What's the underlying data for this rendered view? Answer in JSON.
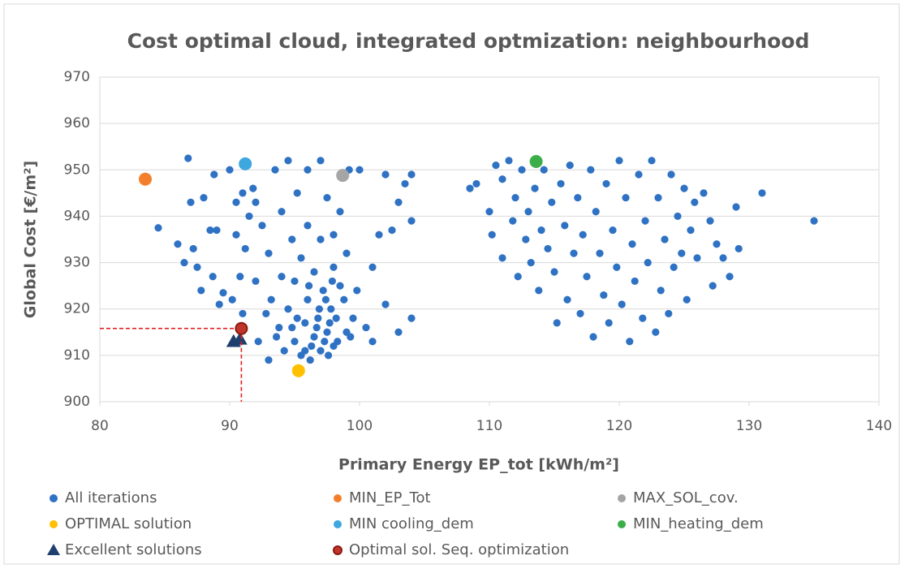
{
  "chart_data": {
    "type": "scatter",
    "title": "Cost optimal cloud, integrated optmization: neighbourhood",
    "xlabel": "Primary Energy EP_tot [kWh/m²]",
    "ylabel": "Global Cost [€/m²]",
    "xlim": [
      80,
      140
    ],
    "xticks": [
      80,
      90,
      100,
      110,
      120,
      130,
      140
    ],
    "ylim": [
      900,
      970
    ],
    "yticks": [
      900,
      910,
      920,
      930,
      940,
      950,
      960,
      970
    ],
    "grid": "y",
    "legend": "bottom",
    "series": [
      {
        "name": "All iterations",
        "color": "#2f72c4",
        "marker": "circle",
        "size": 4.6,
        "x": [
          84.5,
          86,
          86.5,
          86.8,
          87,
          87.2,
          87.5,
          87.8,
          88,
          88.5,
          88.7,
          88.8,
          89,
          89.2,
          89.5,
          90,
          90.2,
          90.5,
          90.5,
          90.8,
          91,
          91,
          91.2,
          91.5,
          91.8,
          92,
          92,
          92.2,
          92.5,
          92.8,
          93,
          93,
          93.2,
          93.5,
          93.8,
          94,
          94,
          94.2,
          94.5,
          94.5,
          94.8,
          95,
          95,
          95.2,
          95.5,
          95.5,
          95.8,
          96,
          96,
          96,
          96.2,
          96.5,
          96.5,
          96.8,
          97,
          97,
          97,
          97.2,
          97.5,
          97.5,
          97.8,
          98,
          98,
          98,
          98.2,
          98.5,
          98.5,
          98.8,
          99,
          99,
          99.2,
          99.5,
          99.8,
          100,
          100.5,
          101,
          101,
          101.5,
          102,
          102,
          102.5,
          103,
          103,
          103.5,
          104,
          104,
          104,
          96.3,
          96.7,
          97.3,
          97.7,
          95.8,
          96.9,
          97.4,
          98.3,
          94.8,
          93.6,
          99.3,
          97.9,
          95.2,
          96.1,
          97.6,
          108.5,
          109,
          110,
          110.2,
          110.5,
          111,
          111,
          111.5,
          111.8,
          112,
          112.2,
          112.5,
          112.8,
          113,
          113.2,
          113.5,
          113.8,
          114,
          114.2,
          114.5,
          114.8,
          115,
          115.2,
          115.5,
          115.8,
          116,
          116.2,
          116.5,
          116.8,
          117,
          117.2,
          117.5,
          117.8,
          118,
          118.2,
          118.5,
          118.8,
          119,
          119.2,
          119.5,
          119.8,
          120,
          120.2,
          120.5,
          120.8,
          121,
          121.2,
          121.5,
          121.8,
          122,
          122.2,
          122.5,
          122.8,
          123,
          123.2,
          123.5,
          123.8,
          124,
          124.2,
          124.5,
          124.8,
          125,
          125.2,
          125.5,
          125.8,
          126,
          126.5,
          127,
          127.2,
          127.5,
          128,
          128.5,
          129,
          129.2,
          131,
          135
        ],
        "y": [
          937.5,
          934,
          930,
          952.5,
          943,
          933,
          929,
          924,
          944,
          937,
          927,
          949,
          937,
          921,
          923.5,
          950,
          922,
          943,
          936,
          927,
          945,
          919,
          933,
          940,
          946,
          943,
          926,
          913,
          938,
          919,
          909,
          932,
          922,
          950,
          916,
          927,
          941,
          911,
          952,
          920,
          935,
          913,
          926,
          945,
          910,
          931,
          917,
          950,
          922,
          938,
          909,
          914,
          928,
          918,
          911,
          952,
          935,
          924,
          915,
          944,
          920,
          912,
          929,
          936,
          918,
          925,
          941,
          922,
          915,
          932,
          950,
          918,
          924,
          950,
          916,
          929,
          913,
          936,
          921,
          949,
          937,
          915,
          943,
          947,
          949,
          918,
          939,
          912,
          916,
          913,
          917,
          911,
          920,
          922,
          913,
          916,
          914,
          914,
          926,
          918,
          925,
          910,
          946,
          947,
          941,
          936,
          951,
          948,
          931,
          952,
          939,
          944,
          927,
          950,
          935,
          941,
          930,
          946,
          924,
          937,
          950,
          933,
          943,
          928,
          917,
          947,
          938,
          922,
          951,
          932,
          944,
          919,
          936,
          927,
          950,
          914,
          941,
          932,
          923,
          947,
          917,
          937,
          929,
          952,
          921,
          944,
          913,
          934,
          926,
          949,
          918,
          939,
          930,
          952,
          915,
          944,
          924,
          935,
          919,
          949,
          929,
          940,
          932,
          946,
          922,
          937,
          943,
          931,
          945,
          939,
          925,
          934,
          931,
          927,
          942,
          933,
          945,
          939
        ]
      },
      {
        "name": "MIN_EP_Tot",
        "color": "#f47f2a",
        "marker": "circle",
        "size": 8,
        "x": [
          83.5
        ],
        "y": [
          948
        ]
      },
      {
        "name": "MAX_SOL_cov.",
        "color": "#a5a5a5",
        "marker": "circle",
        "size": 8,
        "x": [
          98.7
        ],
        "y": [
          948.8
        ]
      },
      {
        "name": "OPTIMAL solution",
        "color": "#ffc000",
        "marker": "circle",
        "size": 8,
        "x": [
          95.3
        ],
        "y": [
          906.7
        ]
      },
      {
        "name": "MIN cooling_dem",
        "color": "#3ea7e0",
        "marker": "circle",
        "size": 8,
        "x": [
          91.2
        ],
        "y": [
          951.3
        ]
      },
      {
        "name": "MIN_heating_dem",
        "color": "#3cae49",
        "marker": "circle",
        "size": 8,
        "x": [
          113.6
        ],
        "y": [
          951.8
        ]
      },
      {
        "name": "Excellent solutions",
        "color": "#1f3f6e",
        "marker": "triangle",
        "size": 9,
        "x": [
          90.3,
          90.8
        ],
        "y": [
          913,
          913.5
        ]
      },
      {
        "name": "Optimal sol. Seq. optimization",
        "color": "#c0352b",
        "marker": "circle",
        "size": 7,
        "x": [
          90.9
        ],
        "y": [
          915.8
        ],
        "guides": true
      }
    ]
  }
}
